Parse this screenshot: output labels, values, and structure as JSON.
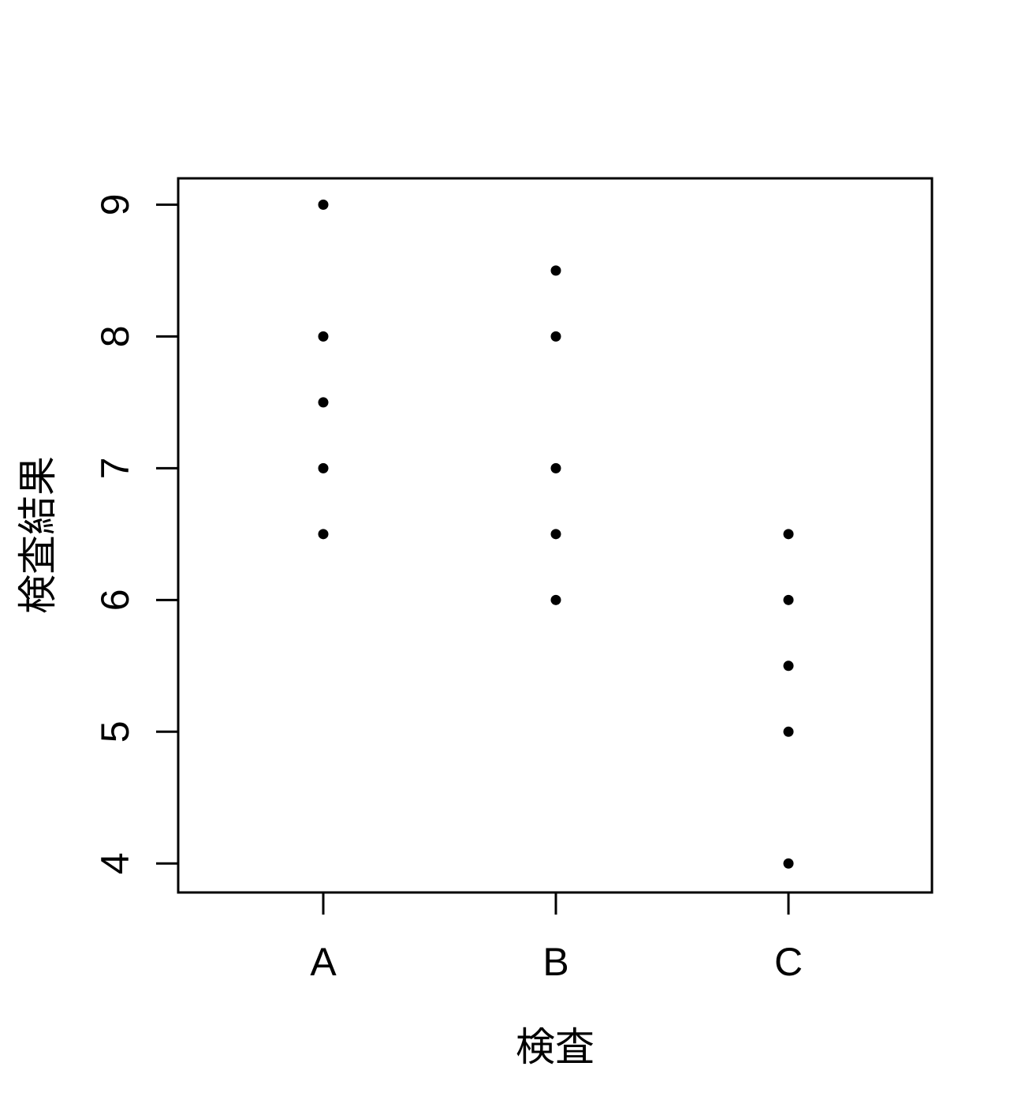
{
  "chart_data": {
    "type": "scatter",
    "subtype": "strip-plot",
    "title": "",
    "xlabel": "検査",
    "ylabel": "検査結果",
    "categories": [
      "A",
      "B",
      "C"
    ],
    "series": [
      {
        "name": "A",
        "values": [
          9,
          8,
          7.5,
          7,
          6.5
        ]
      },
      {
        "name": "B",
        "values": [
          8.5,
          8,
          7,
          6.5,
          6
        ]
      },
      {
        "name": "C",
        "values": [
          6.5,
          6,
          5.5,
          5,
          4
        ]
      }
    ],
    "yticks": [
      4,
      5,
      6,
      7,
      8,
      9
    ],
    "ylim": [
      3.78,
      9.2
    ],
    "grid": false,
    "legend": "none",
    "point_color": "#000000",
    "axis_color": "#000000",
    "background": "#ffffff"
  }
}
